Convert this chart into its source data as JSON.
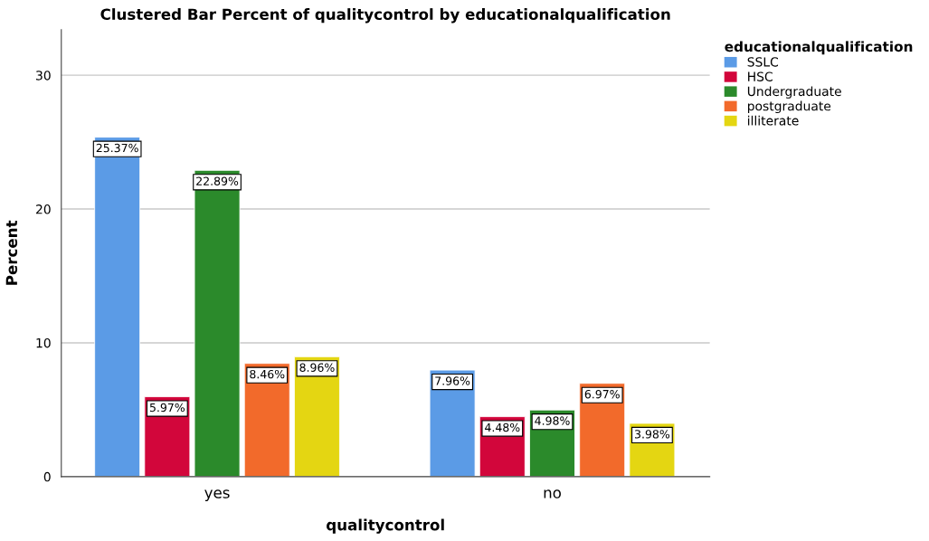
{
  "chart_data": {
    "type": "bar",
    "title": "Clustered Bar Percent of qualitycontrol by educationalqualification",
    "xlabel": "qualitycontrol",
    "ylabel": "Percent",
    "legend_title": "educationalqualification",
    "categories": [
      "yes",
      "no"
    ],
    "series": [
      {
        "name": "SSLC",
        "color": "#5b9be6",
        "values": [
          25.37,
          7.96
        ],
        "value_labels": [
          "25.37%",
          "7.96%"
        ]
      },
      {
        "name": "HSC",
        "color": "#d2063b",
        "values": [
          5.97,
          4.48
        ],
        "value_labels": [
          "5.97%",
          "4.48%"
        ]
      },
      {
        "name": "Undergraduate",
        "color": "#2b8a2b",
        "values": [
          22.89,
          4.98
        ],
        "value_labels": [
          "22.89%",
          "4.98%"
        ]
      },
      {
        "name": "postgraduate",
        "color": "#f26a2b",
        "values": [
          8.46,
          6.97
        ],
        "value_labels": [
          "8.46%",
          "6.97%"
        ]
      },
      {
        "name": "illiterate",
        "color": "#e4d612",
        "values": [
          8.96,
          3.98
        ],
        "value_labels": [
          "8.96%",
          "3.98%"
        ]
      }
    ],
    "ylim": [
      0,
      33.4
    ],
    "yticks": [
      0,
      10,
      20,
      30
    ],
    "grid": "y",
    "legend": "top right"
  }
}
